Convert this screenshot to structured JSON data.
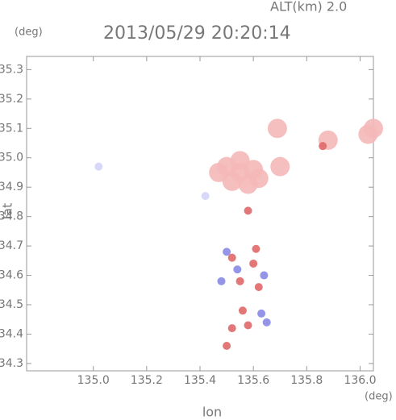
{
  "chart_data": {
    "type": "scatter",
    "title": "2013/05/29 20:20:14",
    "subtitle": "ALT(km) 2.0",
    "y_unit": "(deg)",
    "x_unit": "(deg)",
    "xlabel": "lon",
    "ylabel": "lat",
    "xlim": [
      134.75,
      136.05
    ],
    "ylim": [
      34.275,
      35.345
    ],
    "xticks": [
      {
        "value": 135,
        "label": "135.0"
      },
      135.2,
      135.4,
      135.6,
      135.8,
      {
        "value": 136,
        "label": "136.0"
      }
    ],
    "yticks": [
      34.3,
      34.4,
      34.5,
      34.6,
      34.7,
      34.8,
      34.9,
      {
        "value": 35,
        "label": "35.0"
      },
      35.1,
      35.2,
      35.3
    ],
    "series": [
      {
        "color": "#f5b8b8",
        "x": [
          135.5,
          135.55,
          135.6,
          135.52,
          135.58,
          135.55,
          135.47,
          135.62,
          135.7,
          135.69,
          135.88,
          136.05,
          136.03
        ],
        "y": [
          34.97,
          34.99,
          34.96,
          34.92,
          34.91,
          34.95,
          34.95,
          34.93,
          34.97,
          35.1,
          35.06,
          35.1,
          35.08
        ]
      },
      {
        "color": "#d4d4f8",
        "x": [
          135.42,
          135.02
        ],
        "y": [
          34.87,
          34.97
        ]
      },
      {
        "color": "#e06868",
        "x": [
          135.58,
          135.52,
          135.6,
          135.55,
          135.62,
          135.56,
          135.52,
          135.58,
          135.5,
          135.61,
          135.86
        ],
        "y": [
          34.82,
          34.66,
          34.64,
          34.58,
          34.56,
          34.48,
          34.42,
          34.43,
          34.36,
          34.69,
          35.04
        ]
      },
      {
        "color": "#8a8ae6",
        "x": [
          135.5,
          135.64,
          135.63,
          135.54,
          135.65,
          135.48
        ],
        "y": [
          34.68,
          34.6,
          34.47,
          34.62,
          34.44,
          34.58
        ]
      }
    ]
  }
}
